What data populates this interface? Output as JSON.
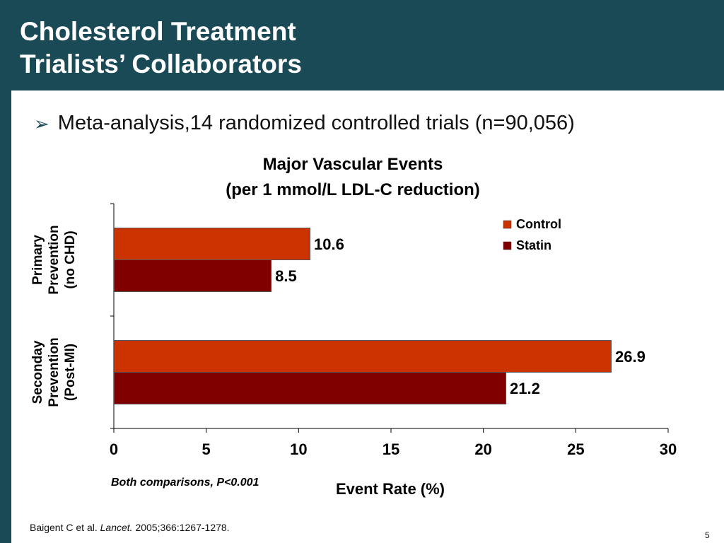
{
  "slide": {
    "title_line1": "Cholesterol Treatment",
    "title_line2": "Trialists’ Collaborators",
    "bullet": "Meta-analysis,14 randomized controlled trials (n=90,056)",
    "bullet_icon": "arrow-bullet-icon",
    "footnote": "Both comparisons, P<0.001",
    "citation_prefix": "Baigent C et al. ",
    "citation_journal": "Lancet.",
    "citation_suffix": " 2005;366:1267-1278.",
    "page_number": "5"
  },
  "colors": {
    "header_bg": "#1b4a57",
    "control": "#cc3300",
    "statin": "#800000"
  },
  "chart_data": {
    "type": "bar",
    "orientation": "horizontal",
    "title_line1": "Major Vascular Events",
    "title_line2": "(per 1 mmol/L LDL-C reduction)",
    "xlabel": "Event Rate (%)",
    "ylabel": "",
    "xlim": [
      0,
      30
    ],
    "xticks": [
      "0",
      "5",
      "10",
      "15",
      "20",
      "25",
      "30"
    ],
    "categories": [
      [
        "Primary",
        "Prevention",
        "(no CHD)"
      ],
      [
        "Seconday",
        "Prevention",
        "(Post-MI)"
      ]
    ],
    "series": [
      {
        "name": "Control",
        "values": [
          10.6,
          26.9
        ]
      },
      {
        "name": "Statin",
        "values": [
          8.5,
          21.2
        ]
      }
    ],
    "data_labels": [
      [
        "10.6",
        "26.9"
      ],
      [
        "8.5",
        "21.2"
      ]
    ],
    "legend_position": "top-right",
    "grid": false
  }
}
